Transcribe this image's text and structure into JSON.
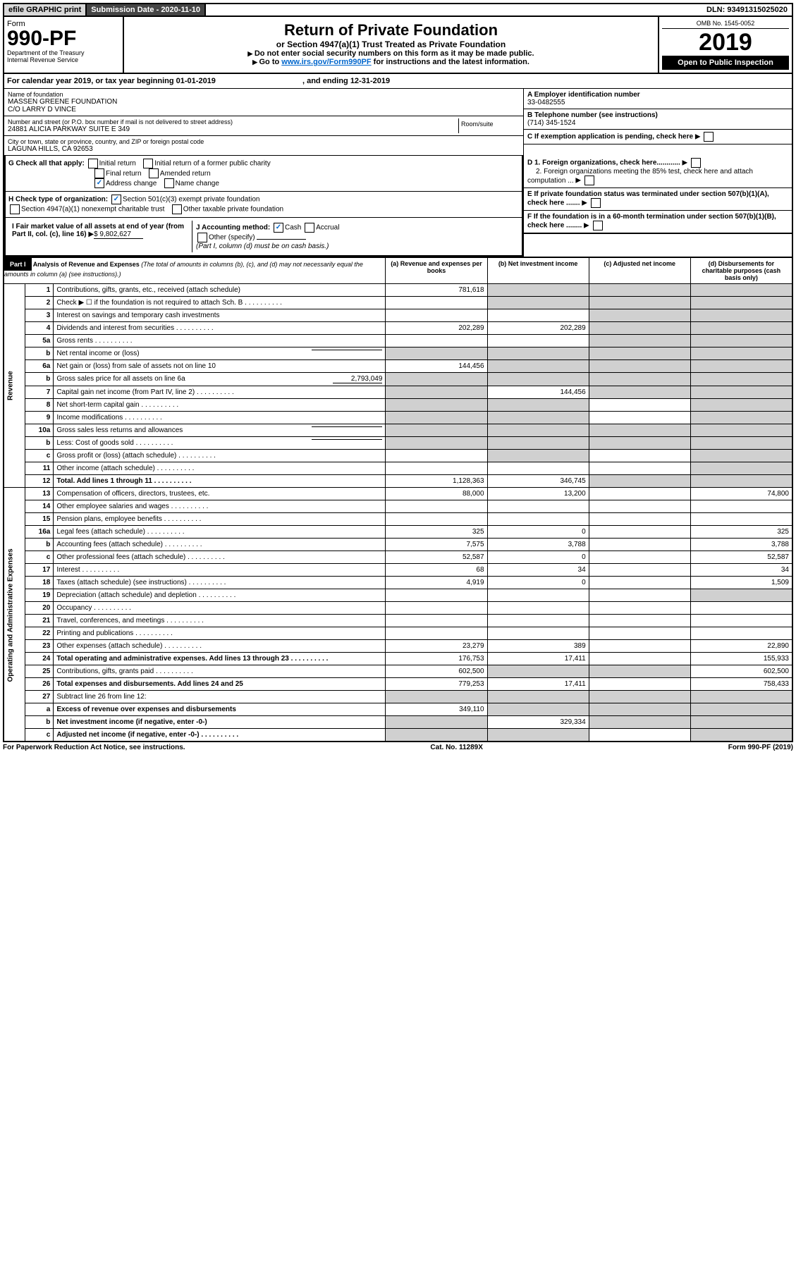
{
  "topbar": {
    "efile": "efile GRAPHIC print",
    "subdate_label": "Submission Date - 2020-11-10",
    "dln": "DLN: 93491315025020"
  },
  "header": {
    "form_word": "Form",
    "form_no": "990-PF",
    "dept": "Department of the Treasury",
    "irs": "Internal Revenue Service",
    "title": "Return of Private Foundation",
    "subtitle": "or Section 4947(a)(1) Trust Treated as Private Foundation",
    "instr1": "Do not enter social security numbers on this form as it may be made public.",
    "instr2_a": "Go to ",
    "instr2_link": "www.irs.gov/Form990PF",
    "instr2_b": " for instructions and the latest information.",
    "omb": "OMB No. 1545-0052",
    "year": "2019",
    "open": "Open to Public Inspection"
  },
  "calyear": {
    "a": "For calendar year 2019, or tax year beginning 01-01-2019",
    "b": ", and ending 12-31-2019"
  },
  "info": {
    "name_label": "Name of foundation",
    "name1": "MASSEN GREENE FOUNDATION",
    "name2": "C/O LARRY D VINCE",
    "addr_label": "Number and street (or P.O. box number if mail is not delivered to street address)",
    "room_label": "Room/suite",
    "addr": "24881 ALICIA PARKWAY SUITE E 349",
    "city_label": "City or town, state or province, country, and ZIP or foreign postal code",
    "city": "LAGUNA HILLS, CA  92653",
    "a_label": "A Employer identification number",
    "a_val": "33-0482555",
    "b_label": "B Telephone number (see instructions)",
    "b_val": "(714) 345-1524",
    "c_label": "C If exemption application is pending, check here",
    "d1": "D 1. Foreign organizations, check here............",
    "d2": "2. Foreign organizations meeting the 85% test, check here and attach computation ...",
    "e_label": "E  If private foundation status was terminated under section 507(b)(1)(A), check here .......",
    "f_label": "F  If the foundation is in a 60-month termination under section 507(b)(1)(B), check here ........"
  },
  "checks": {
    "g_label": "G Check all that apply:",
    "initial": "Initial return",
    "initial_former": "Initial return of a former public charity",
    "final": "Final return",
    "amended": "Amended return",
    "addr_change": "Address change",
    "name_change": "Name change",
    "h_label": "H Check type of organization:",
    "h1": "Section 501(c)(3) exempt private foundation",
    "h2": "Section 4947(a)(1) nonexempt charitable trust",
    "h3": "Other taxable private foundation",
    "i_label": "I Fair market value of all assets at end of year (from Part II, col. (c), line 16)",
    "i_val": "$  9,802,627",
    "j_label": "J Accounting method:",
    "cash": "Cash",
    "accrual": "Accrual",
    "other": "Other (specify)",
    "j_note": "(Part I, column (d) must be on cash basis.)"
  },
  "part1": {
    "label": "Part I",
    "title": "Analysis of Revenue and Expenses",
    "note": "(The total of amounts in columns (b), (c), and (d) may not necessarily equal the amounts in column (a) (see instructions).)",
    "col_a": "(a)   Revenue and expenses per books",
    "col_b": "(b)  Net investment income",
    "col_c": "(c)  Adjusted net income",
    "col_d": "(d)  Disbursements for charitable purposes (cash basis only)"
  },
  "sides": {
    "rev": "Revenue",
    "exp": "Operating and Administrative Expenses"
  },
  "rows": [
    {
      "n": "1",
      "d": "Contributions, gifts, grants, etc., received (attach schedule)",
      "a": "781,618",
      "sb": true,
      "sc": true,
      "sd": true
    },
    {
      "n": "2",
      "d": "Check ▶ ☐ if the foundation is not required to attach Sch. B",
      "dots": true,
      "sb": true,
      "sc": true,
      "sd": true
    },
    {
      "n": "3",
      "d": "Interest on savings and temporary cash investments",
      "sc": true,
      "sd": true
    },
    {
      "n": "4",
      "d": "Dividends and interest from securities",
      "dots": true,
      "a": "202,289",
      "b": "202,289",
      "sc": true,
      "sd": true
    },
    {
      "n": "5a",
      "d": "Gross rents",
      "dots": true,
      "sc": true,
      "sd": true
    },
    {
      "n": "b",
      "d": "Net rental income or (loss)",
      "uline": true,
      "sa": true,
      "sb": true,
      "sc": true,
      "sd": true
    },
    {
      "n": "6a",
      "d": "Net gain or (loss) from sale of assets not on line 10",
      "a": "144,456",
      "sb": true,
      "sc": true,
      "sd": true
    },
    {
      "n": "b",
      "d": "Gross sales price for all assets on line 6a",
      "uval": "2,793,049",
      "sa": true,
      "sb": true,
      "sc": true,
      "sd": true
    },
    {
      "n": "7",
      "d": "Capital gain net income (from Part IV, line 2)",
      "dots": true,
      "sa": true,
      "b": "144,456",
      "sc": true,
      "sd": true
    },
    {
      "n": "8",
      "d": "Net short-term capital gain",
      "dots": true,
      "sa": true,
      "sb": true,
      "sd": true
    },
    {
      "n": "9",
      "d": "Income modifications",
      "dots": true,
      "sa": true,
      "sb": true,
      "sd": true
    },
    {
      "n": "10a",
      "d": "Gross sales less returns and allowances",
      "uline": true,
      "sa": true,
      "sb": true,
      "sc": true,
      "sd": true
    },
    {
      "n": "b",
      "d": "Less: Cost of goods sold",
      "dots": true,
      "uline": true,
      "sa": true,
      "sb": true,
      "sc": true,
      "sd": true
    },
    {
      "n": "c",
      "d": "Gross profit or (loss) (attach schedule)",
      "dots": true,
      "sb": true,
      "sd": true
    },
    {
      "n": "11",
      "d": "Other income (attach schedule)",
      "dots": true,
      "sd": true
    },
    {
      "n": "12",
      "d": "Total. Add lines 1 through 11",
      "dots": true,
      "bold": true,
      "a": "1,128,363",
      "b": "346,745",
      "sc": true,
      "sd": true
    },
    {
      "n": "13",
      "d": "Compensation of officers, directors, trustees, etc.",
      "a": "88,000",
      "b": "13,200",
      "dv": "74,800"
    },
    {
      "n": "14",
      "d": "Other employee salaries and wages",
      "dots": true
    },
    {
      "n": "15",
      "d": "Pension plans, employee benefits",
      "dots": true
    },
    {
      "n": "16a",
      "d": "Legal fees (attach schedule)",
      "dots": true,
      "a": "325",
      "b": "0",
      "dv": "325"
    },
    {
      "n": "b",
      "d": "Accounting fees (attach schedule)",
      "dots": true,
      "a": "7,575",
      "b": "3,788",
      "dv": "3,788"
    },
    {
      "n": "c",
      "d": "Other professional fees (attach schedule)",
      "dots": true,
      "a": "52,587",
      "b": "0",
      "dv": "52,587"
    },
    {
      "n": "17",
      "d": "Interest",
      "dots": true,
      "a": "68",
      "b": "34",
      "dv": "34"
    },
    {
      "n": "18",
      "d": "Taxes (attach schedule) (see instructions)",
      "dots": true,
      "a": "4,919",
      "b": "0",
      "dv": "1,509"
    },
    {
      "n": "19",
      "d": "Depreciation (attach schedule) and depletion",
      "dots": true,
      "sd": true
    },
    {
      "n": "20",
      "d": "Occupancy",
      "dots": true
    },
    {
      "n": "21",
      "d": "Travel, conferences, and meetings",
      "dots": true
    },
    {
      "n": "22",
      "d": "Printing and publications",
      "dots": true
    },
    {
      "n": "23",
      "d": "Other expenses (attach schedule)",
      "dots": true,
      "a": "23,279",
      "b": "389",
      "dv": "22,890"
    },
    {
      "n": "24",
      "d": "Total operating and administrative expenses. Add lines 13 through 23",
      "dots": true,
      "bold": true,
      "a": "176,753",
      "b": "17,411",
      "dv": "155,933"
    },
    {
      "n": "25",
      "d": "Contributions, gifts, grants paid",
      "dots": true,
      "a": "602,500",
      "sb": true,
      "sc": true,
      "dv": "602,500"
    },
    {
      "n": "26",
      "d": "Total expenses and disbursements. Add lines 24 and 25",
      "bold": true,
      "a": "779,253",
      "b": "17,411",
      "dv": "758,433"
    },
    {
      "n": "27",
      "d": "Subtract line 26 from line 12:",
      "sa": true,
      "sb": true,
      "sc": true,
      "sd": true
    },
    {
      "n": "a",
      "d": "Excess of revenue over expenses and disbursements",
      "bold": true,
      "a": "349,110",
      "sb": true,
      "sc": true,
      "sd": true
    },
    {
      "n": "b",
      "d": "Net investment income (if negative, enter -0-)",
      "bold": true,
      "sa": true,
      "b": "329,334",
      "sc": true,
      "sd": true
    },
    {
      "n": "c",
      "d": "Adjusted net income (if negative, enter -0-)",
      "dots": true,
      "bold": true,
      "sa": true,
      "sb": true,
      "sd": true
    }
  ],
  "footer": {
    "left": "For Paperwork Reduction Act Notice, see instructions.",
    "mid": "Cat. No. 11289X",
    "right": "Form 990-PF (2019)"
  }
}
